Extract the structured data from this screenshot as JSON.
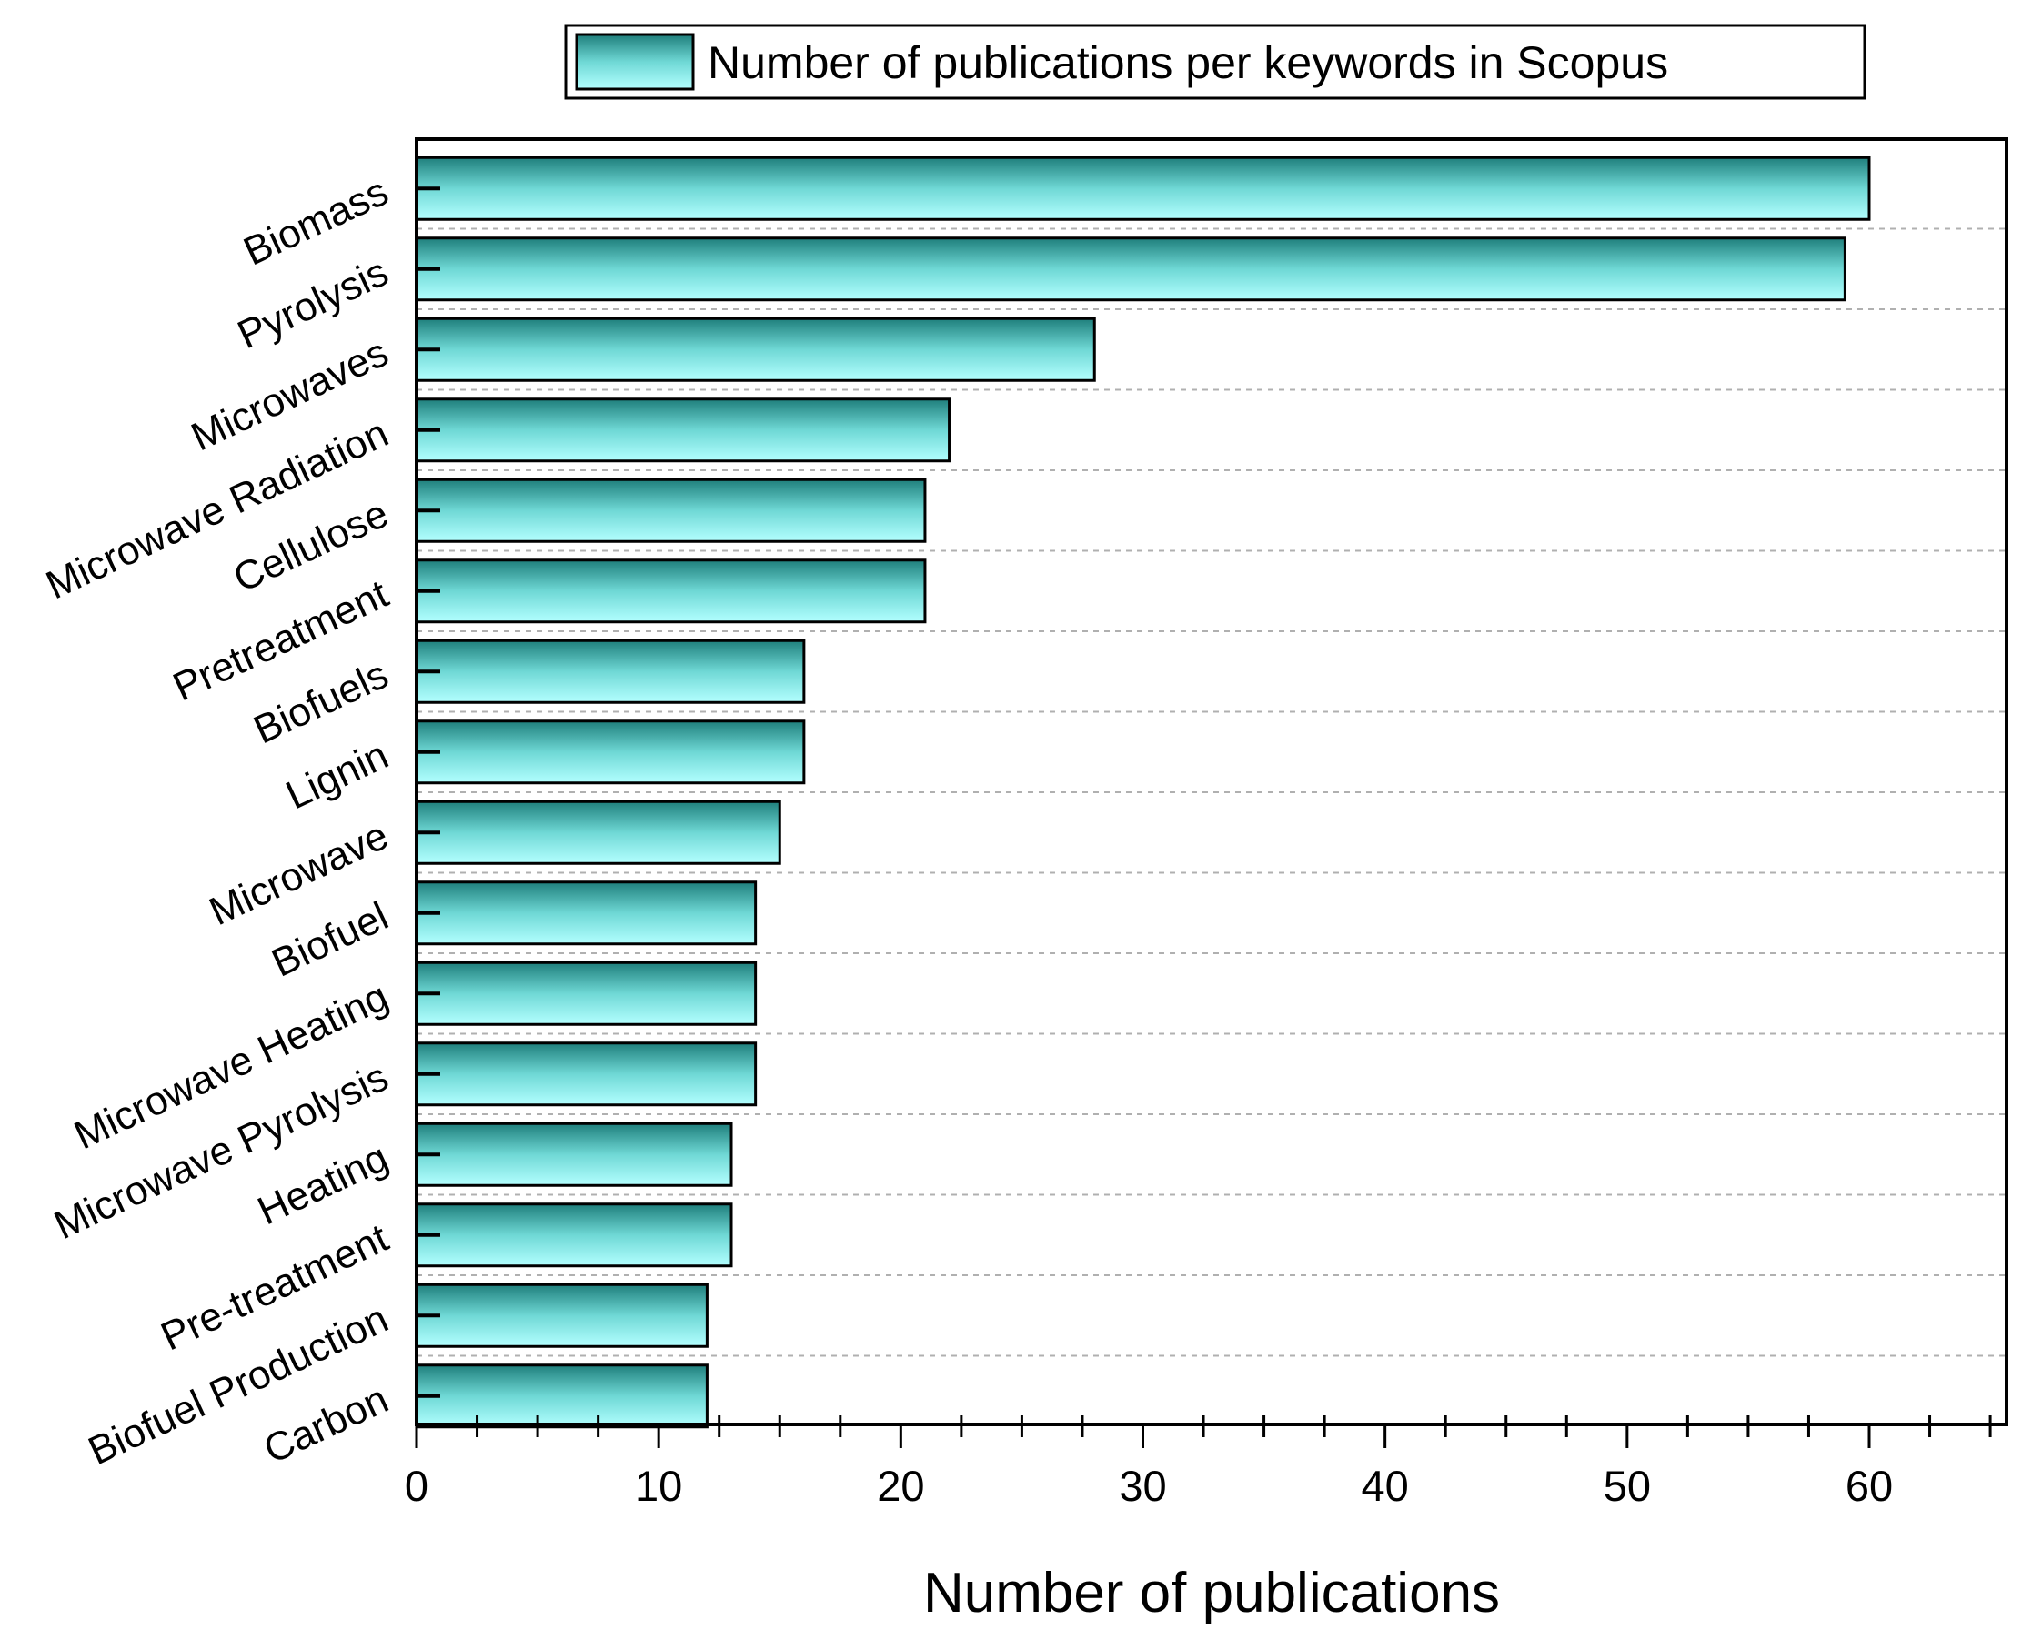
{
  "chart_data": {
    "type": "bar",
    "orientation": "horizontal",
    "categories": [
      "Biomass",
      "Pyrolysis",
      "Microwaves",
      "Microwave Radiation",
      "Cellulose",
      "Pretreatment",
      "Biofuels",
      "Lignin",
      "Microwave",
      "Biofuel",
      "Microwave Heating",
      "Microwave Pyrolysis",
      "Heating",
      "Pre-treatment",
      "Biofuel Production",
      "Carbon"
    ],
    "series": [
      {
        "name": "Number of publications per keywords in Scopus",
        "values": [
          60,
          59,
          28,
          22,
          21,
          21,
          16,
          16,
          15,
          14,
          14,
          14,
          13,
          13,
          12,
          12
        ]
      }
    ],
    "xlabel": "Number of publications",
    "ylabel": "",
    "xlim": [
      0,
      66
    ],
    "xticks": [
      0,
      10,
      20,
      30,
      40,
      50,
      60
    ],
    "legend_position": "top",
    "grid": "horizontal dashed",
    "colors": {
      "bar_top": "#1f7f7c",
      "bar_bottom": "#b3ffff",
      "bar_stroke": "#000000",
      "legend_border": "#000000",
      "grid": "#b0b0b0"
    }
  }
}
